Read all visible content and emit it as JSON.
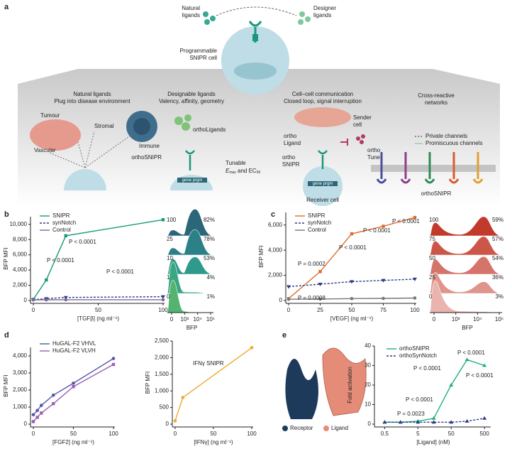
{
  "panel_a": {
    "label": "a",
    "natural": [
      "Natural",
      "ligands"
    ],
    "designer": [
      "Designer",
      "ligands"
    ],
    "cell": [
      "Programmable",
      "SNIPR cell"
    ],
    "s1": {
      "title": "Natural ligands",
      "subtitle": "Plug into disease environment",
      "tumour": "Tumour",
      "stromal": "Stromal",
      "immune": "Immune",
      "vascular": "Vascular"
    },
    "s2": {
      "title": "Designable ligands",
      "subtitle": "Valency, affinity, geometry",
      "ligands": "orthoLigands",
      "receptor": "orthoSNIPR",
      "tunable": "Tunable",
      "e": "E",
      "max": "max",
      "and": " and EC",
      "ec": "50",
      "gene": "gene prgm"
    },
    "s3": {
      "title": "Cell–cell communication",
      "subtitle": "Closed loop, signal interruption",
      "sender": [
        "Sender",
        "cell"
      ],
      "ligand": [
        "ortho",
        "Ligand"
      ],
      "snipr": [
        "ortho",
        "SNIPR"
      ],
      "tune": [
        "ortho",
        "Tune"
      ],
      "gene": "gene prgm",
      "receiver": "Receiver cell"
    },
    "s4": {
      "title": [
        "Cross-reactive",
        "networks"
      ],
      "private": "Private channels",
      "promiscuous": "Promiscuous channels",
      "receptor": "orthoSNIPR"
    }
  },
  "panel_e": {
    "receptor": "Receptor",
    "ligand": "Ligand"
  },
  "chart_data": [
    {
      "type": "line",
      "label": "b",
      "xlabel": "[TGFβ] (ng ml⁻¹)",
      "ylabel": "BFP MFI",
      "x": [
        0,
        10,
        25,
        100
      ],
      "xlim": [
        0,
        100
      ],
      "xticks": [
        0,
        50,
        100
      ],
      "ylim": [
        0,
        11000
      ],
      "yticks": [
        0,
        {
          "value": 2000,
          "label": "2,000"
        },
        {
          "value": 4000,
          "label": "4,000"
        },
        {
          "value": 6000,
          "label": "6,000"
        },
        {
          "value": 8000,
          "label": "8,000"
        },
        {
          "value": 10000,
          "label": "10,000"
        }
      ],
      "series": [
        {
          "name": "SNIPR",
          "color": "#17997a",
          "linestyle": "solid",
          "marker": "square",
          "values": [
            150,
            2700,
            8500,
            10600
          ]
        },
        {
          "name": "synNotch",
          "color": "#2e3a87",
          "linestyle": "dashed",
          "marker": "triangle-down",
          "values": [
            100,
            250,
            400,
            500
          ]
        },
        {
          "name": "Control",
          "color": "#7a6a9a",
          "linestyle": "solid",
          "marker": "circle",
          "values": [
            80,
            90,
            100,
            100
          ]
        }
      ],
      "legend": "upper left",
      "annotations": [
        "P < 0.0001",
        "P < 0.0001",
        "P < 0.0001"
      ]
    },
    {
      "type": "ridgeline",
      "categories": [
        "100",
        "25",
        "10",
        "1",
        "0"
      ],
      "values": [
        82,
        78,
        53,
        4,
        1
      ],
      "value_labels": [
        "82%",
        "78%",
        "53%",
        "4%",
        "1%"
      ],
      "colors": [
        "#2b6679",
        "#2c8189",
        "#2d9a8c",
        "#39a880",
        "#52b46e"
      ],
      "xlabel": "BFP",
      "xscale": "symlog",
      "xlim": [
        0,
        100000
      ],
      "xticks": [
        0,
        {
          "value": 1000,
          "label": "10³"
        },
        {
          "value": 10000,
          "label": "10⁴"
        },
        {
          "value": 100000,
          "label": "10⁵"
        }
      ]
    },
    {
      "type": "line",
      "label": "c",
      "xlabel": "[VEGF] (ng ml⁻¹)",
      "ylabel": "BFP MFI",
      "x": [
        0,
        25,
        50,
        75,
        100
      ],
      "xlim": [
        0,
        100
      ],
      "xticks": [
        0,
        25,
        50,
        75,
        100
      ],
      "ylim": [
        0,
        7000
      ],
      "yticks": [
        0,
        {
          "value": 2000,
          "label": "2,000"
        },
        {
          "value": 4000,
          "label": "4,000"
        },
        {
          "value": 6000,
          "label": "6,000"
        }
      ],
      "series": [
        {
          "name": "SNIPR",
          "color": "#e0692c",
          "linestyle": "solid",
          "marker": "square",
          "values": [
            150,
            2300,
            5300,
            5900,
            6600
          ]
        },
        {
          "name": "synNotch",
          "color": "#2e3a87",
          "linestyle": "dashed",
          "marker": "triangle-down",
          "values": [
            1100,
            1300,
            1500,
            1600,
            1700
          ]
        },
        {
          "name": "Control",
          "color": "#777777",
          "linestyle": "solid",
          "marker": "circle",
          "values": [
            100,
            120,
            150,
            170,
            200
          ]
        }
      ],
      "legend": "upper left",
      "annotations": [
        "P = 0.0002",
        "P = 0.0008",
        "P < 0.0001",
        "P < 0.0001",
        "P < 0.0001"
      ]
    },
    {
      "type": "ridgeline",
      "categories": [
        "100",
        "75",
        "50",
        "25",
        "0"
      ],
      "values": [
        59,
        57,
        54,
        36,
        3
      ],
      "value_labels": [
        "59%",
        "57%",
        "54%",
        "36%",
        "3%"
      ],
      "colors": [
        "#c23a2b",
        "#cc5748",
        "#d5746a",
        "#df948c",
        "#eab3ad"
      ],
      "xlabel": "BFP",
      "xscale": "symlog",
      "xlim": [
        0,
        100000
      ],
      "xticks": [
        0,
        {
          "value": 1000,
          "label": "10³"
        },
        {
          "value": 10000,
          "label": "10⁴"
        },
        {
          "value": 100000,
          "label": "10⁵"
        }
      ]
    },
    {
      "type": "line",
      "label": "d",
      "xlabel": "[FGF2] (ng ml⁻¹)",
      "ylabel": "BFP MFI",
      "x": [
        0,
        5,
        10,
        25,
        50,
        100
      ],
      "xlim": [
        0,
        100
      ],
      "xticks": [
        0,
        50,
        100
      ],
      "ylim": [
        0,
        4500
      ],
      "yticks": [
        0,
        {
          "value": 1000,
          "label": "1,000"
        },
        {
          "value": 2000,
          "label": "2,000"
        },
        {
          "value": 3000,
          "label": "3,000"
        },
        {
          "value": 4000,
          "label": "4,000"
        }
      ],
      "series": [
        {
          "name": "HuGAL-F2 VHVL",
          "color": "#5457a6",
          "linestyle": "solid",
          "marker": "circle",
          "values": [
            550,
            800,
            1100,
            1700,
            2400,
            3850
          ]
        },
        {
          "name": "HuGAL-F2 VLVH",
          "color": "#9a5fb8",
          "linestyle": "solid",
          "marker": "square",
          "values": [
            150,
            400,
            650,
            1200,
            2200,
            3500
          ]
        }
      ],
      "legend": "upper left"
    },
    {
      "type": "line",
      "xlabel": "[IFNγ] (ng ml⁻¹)",
      "ylabel": "BFP MFI",
      "x": [
        0,
        10,
        100
      ],
      "xlim": [
        0,
        100
      ],
      "xticks": [
        0,
        50,
        100
      ],
      "ylim": [
        0,
        2500
      ],
      "yticks": [
        0,
        500,
        {
          "value": 1000,
          "label": "1,000"
        },
        {
          "value": 1500,
          "label": "1,500"
        },
        {
          "value": 2000,
          "label": "2,000"
        },
        {
          "value": 2500,
          "label": "2,500"
        }
      ],
      "series": [
        {
          "name": "IFNγ SNIPR",
          "color": "#f0a92c",
          "linestyle": "solid",
          "marker": "circle",
          "values": [
            100,
            800,
            2300
          ]
        }
      ],
      "legend": "upper left",
      "legend_marker": false
    },
    {
      "type": "line",
      "label": "e",
      "xlabel": "[Ligand] (nM)",
      "ylabel": "Fold activation",
      "xscale": "log",
      "x": [
        0.5,
        1.5,
        5,
        15,
        50,
        150,
        500
      ],
      "xlim": [
        0.3,
        700
      ],
      "xticks": [
        0.5,
        5,
        50,
        500
      ],
      "ylim": [
        0,
        40
      ],
      "yticks": [
        0,
        10,
        20,
        30,
        40
      ],
      "series": [
        {
          "name": "orthoSNIPR",
          "color": "#1faf7c",
          "linestyle": "solid",
          "marker": "triangle",
          "values": [
            1,
            1,
            1.5,
            3,
            20,
            33,
            30
          ]
        },
        {
          "name": "orthoSynNotch",
          "color": "#2e3a87",
          "linestyle": "dashed",
          "marker": "triangle",
          "values": [
            1,
            1,
            1,
            1,
            1,
            1.5,
            3
          ]
        }
      ],
      "legend": "upper left",
      "annotations": [
        "P = 0.0023",
        "P < 0.0001",
        "P < 0.0001",
        "P < 0.0001",
        "P < 0.0001"
      ]
    }
  ]
}
